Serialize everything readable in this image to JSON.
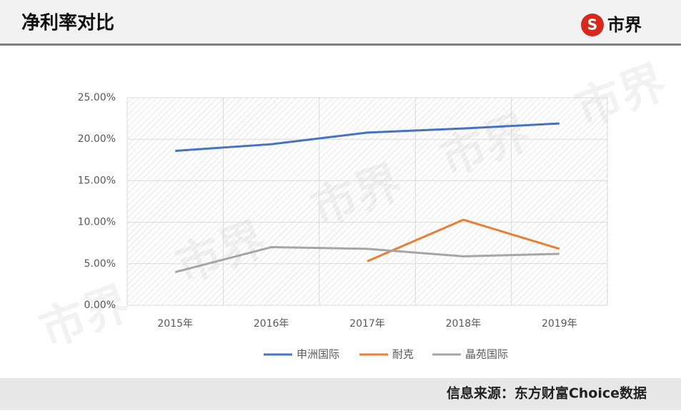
{
  "brand": "市界",
  "chart_data": {
    "type": "line",
    "title": "净利率对比",
    "source": "信息来源：东方财富Choice数据",
    "categories": [
      "2015年",
      "2016年",
      "2017年",
      "2018年",
      "2019年"
    ],
    "series": [
      {
        "name": "申洲国际",
        "color": "#4472c4",
        "values": [
          18.6,
          19.4,
          20.8,
          21.3,
          21.9
        ]
      },
      {
        "name": "耐克",
        "color": "#ed7d31",
        "values": [
          null,
          null,
          5.3,
          10.3,
          6.8
        ]
      },
      {
        "name": "晶苑国际",
        "color": "#a5a5a5",
        "values": [
          4.0,
          7.0,
          6.8,
          5.9,
          6.2
        ]
      }
    ],
    "ylim": [
      0,
      25
    ],
    "yticks": [
      {
        "value": 0,
        "label": "0.00%"
      },
      {
        "value": 5,
        "label": "5.00%"
      },
      {
        "value": 10,
        "label": "10.00%"
      },
      {
        "value": 15,
        "label": "15.00%"
      },
      {
        "value": 20,
        "label": "20.00%"
      },
      {
        "value": 25,
        "label": "25.00%"
      }
    ],
    "grid": true,
    "legend": "bottom"
  }
}
